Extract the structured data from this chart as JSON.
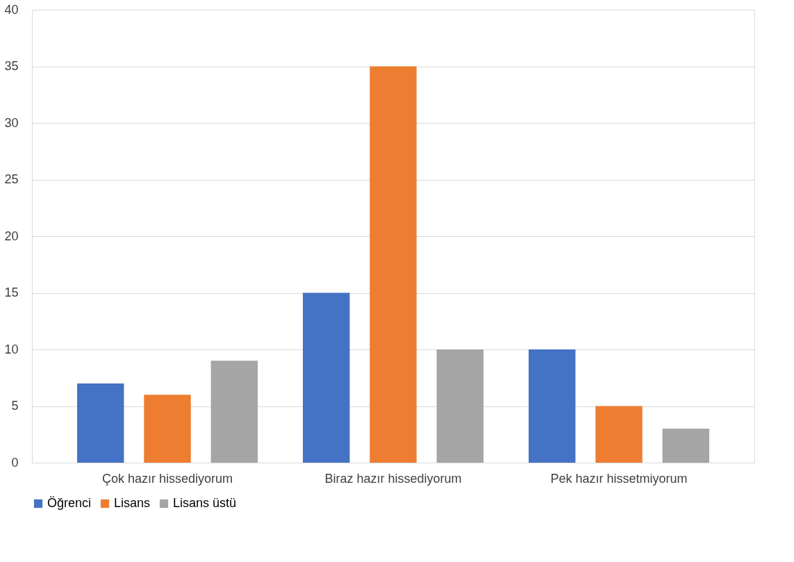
{
  "chart_data": {
    "type": "bar",
    "categories": [
      "Çok hazır hissediyorum",
      "Biraz hazır hissediyorum",
      "Pek hazır hissetmiyorum"
    ],
    "series": [
      {
        "name": "Öğrenci",
        "color": "#4472c4",
        "values": [
          7,
          15,
          10
        ]
      },
      {
        "name": "Lisans",
        "color": "#ed7d31",
        "values": [
          6,
          35,
          5
        ]
      },
      {
        "name": "Lisans üstü",
        "color": "#a5a5a5",
        "values": [
          9,
          10,
          3
        ]
      }
    ],
    "ylim": [
      0,
      40
    ],
    "yticks": [
      0,
      5,
      10,
      15,
      20,
      25,
      30,
      35,
      40
    ],
    "grid": "y",
    "legend": "bottom"
  }
}
